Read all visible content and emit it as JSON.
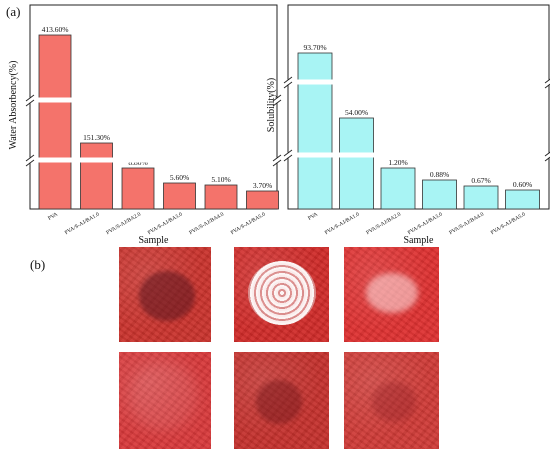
{
  "figure": {
    "panel_a_label": "(a)",
    "panel_b_label": "(b)"
  },
  "chart_data": [
    {
      "type": "bar",
      "categories": [
        "PVA",
        "PVA/S-AJ/BA1.0",
        "PVA/S-AJ/BA2.0",
        "PVA/S-AJ/BA3.0",
        "PVA/S-AJ/BA4.0",
        "PVA/S-AJ/BA5.0"
      ],
      "values": [
        413.6,
        151.3,
        8.8,
        5.6,
        5.1,
        3.7
      ],
      "data_labels": [
        "413.60%",
        "151.30%",
        "8.80%",
        "5.60%",
        "5.10%",
        "3.70%"
      ],
      "xlabel": "Sample",
      "ylabel": "Water Absorbency(%)",
      "axis_breaks": 2,
      "grid": false,
      "bar_color": "#f4736b",
      "bar_edge": "#333333"
    },
    {
      "type": "bar",
      "categories": [
        "PVA",
        "PVA/S-AJ/BA1.0",
        "PVA/S-AJ/BA2.0",
        "PVA/S-AJ/BA3.0",
        "PVA/S-AJ/BA4.0",
        "PVA/S-AJ/BA5.0"
      ],
      "values": [
        93.7,
        54.0,
        1.2,
        0.88,
        0.67,
        0.6
      ],
      "data_labels": [
        "93.70%",
        "54.00%",
        "1.20%",
        "0.88%",
        "0.67%",
        "0.60%"
      ],
      "xlabel": "Sample",
      "ylabel": "Solubility(%)",
      "axis_breaks": 2,
      "grid": false,
      "bar_color": "#a8f4f4",
      "bar_edge": "#333333"
    }
  ],
  "photos": [
    {
      "spot": "dark-stain",
      "base": "#c9322c"
    },
    {
      "spot": "white-crinkled",
      "base": "#d02a28"
    },
    {
      "spot": "faint-white",
      "base": "#de3030"
    },
    {
      "spot": "none",
      "base": "#d8383a"
    },
    {
      "spot": "dark-heart",
      "base": "#c4302c"
    },
    {
      "spot": "faint-dark",
      "base": "#cf3a36"
    }
  ]
}
